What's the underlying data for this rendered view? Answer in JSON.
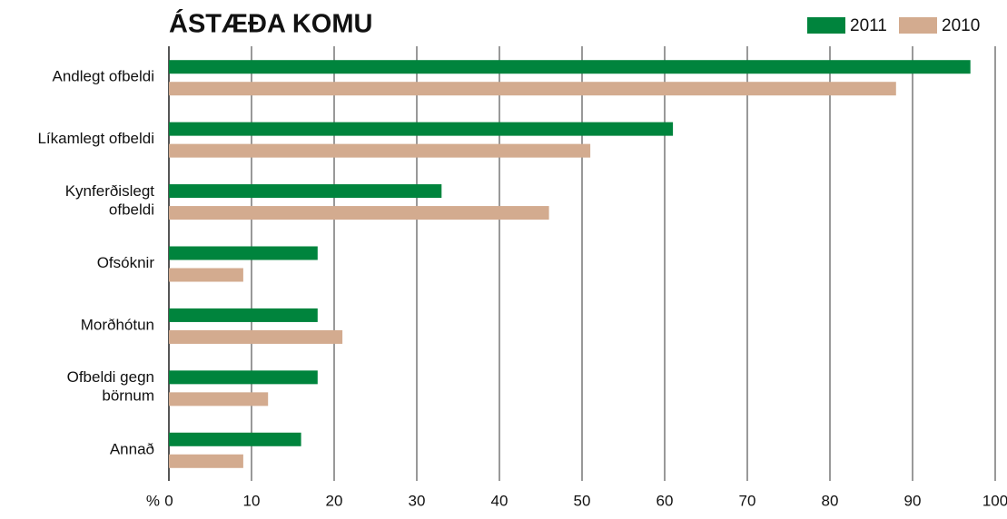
{
  "chart_data": {
    "type": "bar",
    "orientation": "horizontal",
    "title": "ÁSTÆÐA KOMU",
    "x_label": "%",
    "categories": [
      "Andlegt ofbeldi",
      "Líkamlegt ofbeldi",
      "Kynferðislegt\nofbeldi",
      "Ofsóknir",
      "Morðhótun",
      "Ofbeldi gegn\nbörnum",
      "Annað"
    ],
    "series": [
      {
        "name": "2011",
        "color": "#00843d",
        "values": [
          97,
          61,
          33,
          18,
          18,
          18,
          16
        ]
      },
      {
        "name": "2010",
        "color": "#d3ab8f",
        "values": [
          88,
          51,
          46,
          9,
          21,
          12,
          9
        ]
      }
    ],
    "xlim": [
      0,
      100
    ],
    "xticks": [
      0,
      10,
      20,
      30,
      40,
      50,
      60,
      70,
      80,
      90,
      100
    ],
    "grid": true,
    "legend": "top-right"
  }
}
